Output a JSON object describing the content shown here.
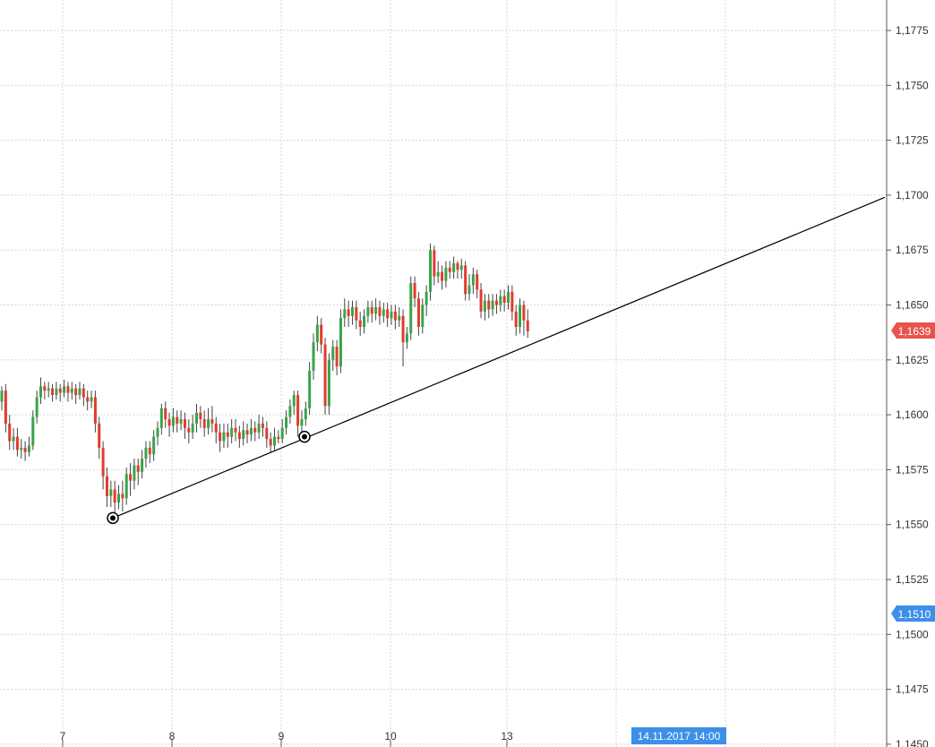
{
  "chart_data": {
    "type": "candlestick",
    "y_range": [
      1.145,
      1.179
    ],
    "y_ticks": [
      {
        "value": 1.1775,
        "label": "1,1775"
      },
      {
        "value": 1.175,
        "label": "1,1750"
      },
      {
        "value": 1.1725,
        "label": "1,1725"
      },
      {
        "value": 1.17,
        "label": "1,1700"
      },
      {
        "value": 1.1675,
        "label": "1,1675"
      },
      {
        "value": 1.165,
        "label": "1,1650"
      },
      {
        "value": 1.1625,
        "label": "1,1625"
      },
      {
        "value": 1.16,
        "label": "1,1600"
      },
      {
        "value": 1.1575,
        "label": "1,1575"
      },
      {
        "value": 1.155,
        "label": "1,1550"
      },
      {
        "value": 1.1525,
        "label": "1,1525"
      },
      {
        "value": 1.15,
        "label": "1,1500"
      },
      {
        "value": 1.1475,
        "label": "1,1475"
      },
      {
        "value": 1.145,
        "label": "1,1450"
      }
    ],
    "x_ticks": [
      "7",
      "8",
      "9",
      "10",
      "13"
    ],
    "current_price_label": "1,1639",
    "current_price_color": "#e8534f",
    "marker_price_label": "1,1510",
    "marker_price_color": "#3d8fe8",
    "cursor_time_label": "14.11.2017 14:00",
    "cursor_time_color": "#3d8fe8",
    "up_color": "#3aa34a",
    "down_color": "#e23b2e",
    "trendline": {
      "start_price": 1.1553,
      "anchor_price": 1.159,
      "end_price": 1.1699
    },
    "candles": [
      [
        1.1606,
        1.1611,
        1.1602,
        1.1613
      ],
      [
        1.1611,
        1.1596,
        1.1592,
        1.1614
      ],
      [
        1.1596,
        1.1588,
        1.1584,
        1.16
      ],
      [
        1.1588,
        1.159,
        1.1584,
        1.1594
      ],
      [
        1.159,
        1.1584,
        1.1581,
        1.1594
      ],
      [
        1.1584,
        1.1585,
        1.158,
        1.1589
      ],
      [
        1.1585,
        1.1583,
        1.1579,
        1.1588
      ],
      [
        1.1583,
        1.1586,
        1.1581,
        1.159
      ],
      [
        1.1586,
        1.1599,
        1.1584,
        1.1602
      ],
      [
        1.1599,
        1.1608,
        1.1596,
        1.1611
      ],
      [
        1.1608,
        1.1613,
        1.1605,
        1.1617
      ],
      [
        1.1613,
        1.1611,
        1.1607,
        1.1615
      ],
      [
        1.1611,
        1.1612,
        1.1608,
        1.1615
      ],
      [
        1.1612,
        1.1609,
        1.1606,
        1.1614
      ],
      [
        1.1609,
        1.1612,
        1.1607,
        1.1615
      ],
      [
        1.1612,
        1.161,
        1.1606,
        1.1614
      ],
      [
        1.161,
        1.1613,
        1.1608,
        1.1616
      ],
      [
        1.1613,
        1.161,
        1.1606,
        1.1615
      ],
      [
        1.161,
        1.1612,
        1.1607,
        1.1615
      ],
      [
        1.1612,
        1.1609,
        1.1605,
        1.1614
      ],
      [
        1.1609,
        1.1612,
        1.1607,
        1.1615
      ],
      [
        1.1612,
        1.1608,
        1.1604,
        1.1614
      ],
      [
        1.1608,
        1.1606,
        1.1602,
        1.1611
      ],
      [
        1.1606,
        1.1608,
        1.1603,
        1.1611
      ],
      [
        1.1608,
        1.1596,
        1.1592,
        1.1611
      ],
      [
        1.1596,
        1.1585,
        1.158,
        1.1599
      ],
      [
        1.1585,
        1.1572,
        1.1566,
        1.1588
      ],
      [
        1.1572,
        1.1563,
        1.1558,
        1.1576
      ],
      [
        1.1563,
        1.1566,
        1.1558,
        1.157
      ],
      [
        1.1566,
        1.156,
        1.1555,
        1.157
      ],
      [
        1.156,
        1.1564,
        1.1557,
        1.1568
      ],
      [
        1.1564,
        1.1562,
        1.1556,
        1.157
      ],
      [
        1.1562,
        1.1573,
        1.1559,
        1.1576
      ],
      [
        1.1573,
        1.157,
        1.1563,
        1.1578
      ],
      [
        1.157,
        1.1577,
        1.1566,
        1.158
      ],
      [
        1.1577,
        1.1574,
        1.1568,
        1.158
      ],
      [
        1.1574,
        1.158,
        1.1571,
        1.1584
      ],
      [
        1.158,
        1.1585,
        1.1576,
        1.1588
      ],
      [
        1.1585,
        1.1582,
        1.1578,
        1.1588
      ],
      [
        1.1582,
        1.159,
        1.1579,
        1.1593
      ],
      [
        1.159,
        1.1594,
        1.1586,
        1.1597
      ],
      [
        1.1594,
        1.1603,
        1.1591,
        1.1605
      ],
      [
        1.1603,
        1.1598,
        1.1594,
        1.1606
      ],
      [
        1.1598,
        1.1595,
        1.159,
        1.1601
      ],
      [
        1.1595,
        1.1599,
        1.1592,
        1.1603
      ],
      [
        1.1599,
        1.1596,
        1.1592,
        1.1602
      ],
      [
        1.1596,
        1.1598,
        1.1593,
        1.1602
      ],
      [
        1.1598,
        1.1594,
        1.1589,
        1.1601
      ],
      [
        1.1594,
        1.1592,
        1.1587,
        1.1598
      ],
      [
        1.1592,
        1.1596,
        1.1589,
        1.16
      ],
      [
        1.1596,
        1.1601,
        1.1592,
        1.1605
      ],
      [
        1.1601,
        1.1598,
        1.1594,
        1.1604
      ],
      [
        1.1598,
        1.1594,
        1.159,
        1.1602
      ],
      [
        1.1594,
        1.1598,
        1.1591,
        1.1603
      ],
      [
        1.1598,
        1.1596,
        1.1592,
        1.1604
      ],
      [
        1.1596,
        1.1592,
        1.1587,
        1.1599
      ],
      [
        1.1592,
        1.1588,
        1.1583,
        1.1596
      ],
      [
        1.1588,
        1.1592,
        1.1585,
        1.1596
      ],
      [
        1.1592,
        1.159,
        1.1585,
        1.1596
      ],
      [
        1.159,
        1.1594,
        1.1587,
        1.1598
      ],
      [
        1.1594,
        1.1592,
        1.1588,
        1.1598
      ],
      [
        1.1592,
        1.1589,
        1.1585,
        1.1595
      ],
      [
        1.1589,
        1.1593,
        1.1586,
        1.1597
      ],
      [
        1.1593,
        1.1591,
        1.1587,
        1.1596
      ],
      [
        1.1591,
        1.1594,
        1.1588,
        1.1598
      ],
      [
        1.1594,
        1.1592,
        1.1588,
        1.1597
      ],
      [
        1.1592,
        1.1596,
        1.1589,
        1.16
      ],
      [
        1.1596,
        1.1594,
        1.159,
        1.1599
      ],
      [
        1.1594,
        1.1589,
        1.1585,
        1.1597
      ],
      [
        1.1589,
        1.1586,
        1.1583,
        1.1592
      ],
      [
        1.1586,
        1.159,
        1.1584,
        1.1594
      ],
      [
        1.159,
        1.1589,
        1.1587,
        1.1593
      ],
      [
        1.1589,
        1.1594,
        1.1587,
        1.1598
      ],
      [
        1.1594,
        1.1599,
        1.1591,
        1.1602
      ],
      [
        1.1599,
        1.1604,
        1.1596,
        1.1607
      ],
      [
        1.1604,
        1.1609,
        1.16,
        1.1611
      ],
      [
        1.1609,
        1.1595,
        1.159,
        1.1611
      ],
      [
        1.1595,
        1.1598,
        1.1592,
        1.1602
      ],
      [
        1.1598,
        1.1603,
        1.1595,
        1.1606
      ],
      [
        1.1603,
        1.162,
        1.16,
        1.1624
      ],
      [
        1.162,
        1.1633,
        1.1616,
        1.1637
      ],
      [
        1.1633,
        1.1641,
        1.1629,
        1.1645
      ],
      [
        1.1641,
        1.1632,
        1.1628,
        1.1644
      ],
      [
        1.1632,
        1.1604,
        1.16,
        1.1635
      ],
      [
        1.1604,
        1.1625,
        1.16,
        1.1628
      ],
      [
        1.1625,
        1.1631,
        1.162,
        1.1634
      ],
      [
        1.1631,
        1.1622,
        1.1618,
        1.1634
      ],
      [
        1.1622,
        1.1644,
        1.1619,
        1.1648
      ],
      [
        1.1644,
        1.1648,
        1.164,
        1.1653
      ],
      [
        1.1648,
        1.1645,
        1.164,
        1.1652
      ],
      [
        1.1645,
        1.1649,
        1.1641,
        1.1652
      ],
      [
        1.1649,
        1.1643,
        1.1639,
        1.1652
      ],
      [
        1.1643,
        1.164,
        1.1636,
        1.1647
      ],
      [
        1.164,
        1.1645,
        1.1637,
        1.1648
      ],
      [
        1.1645,
        1.1649,
        1.1642,
        1.1652
      ],
      [
        1.1649,
        1.1646,
        1.1642,
        1.1652
      ],
      [
        1.1646,
        1.1649,
        1.1643,
        1.1653
      ],
      [
        1.1649,
        1.1645,
        1.1641,
        1.1652
      ],
      [
        1.1645,
        1.1648,
        1.1642,
        1.1651
      ],
      [
        1.1648,
        1.1644,
        1.164,
        1.1651
      ],
      [
        1.1644,
        1.1647,
        1.1641,
        1.165
      ],
      [
        1.1647,
        1.1643,
        1.1639,
        1.165
      ],
      [
        1.1643,
        1.1645,
        1.164,
        1.1649
      ],
      [
        1.1645,
        1.1633,
        1.1622,
        1.1648
      ],
      [
        1.1633,
        1.1637,
        1.163,
        1.164
      ],
      [
        1.1637,
        1.166,
        1.1634,
        1.1663
      ],
      [
        1.166,
        1.1653,
        1.1649,
        1.1663
      ],
      [
        1.1653,
        1.164,
        1.1636,
        1.1656
      ],
      [
        1.164,
        1.165,
        1.1637,
        1.1653
      ],
      [
        1.165,
        1.1656,
        1.1645,
        1.1659
      ],
      [
        1.1656,
        1.1675,
        1.1652,
        1.1678
      ],
      [
        1.1675,
        1.1663,
        1.1659,
        1.1677
      ],
      [
        1.1663,
        1.1665,
        1.166,
        1.167
      ],
      [
        1.1665,
        1.1661,
        1.1657,
        1.1668
      ],
      [
        1.1661,
        1.1667,
        1.1658,
        1.167
      ],
      [
        1.1667,
        1.1665,
        1.1662,
        1.167
      ],
      [
        1.1665,
        1.1669,
        1.1662,
        1.1672
      ],
      [
        1.1669,
        1.1666,
        1.1662,
        1.167
      ],
      [
        1.1666,
        1.1668,
        1.1662,
        1.1671
      ],
      [
        1.1668,
        1.1655,
        1.1652,
        1.167
      ],
      [
        1.1655,
        1.1659,
        1.1652,
        1.1664
      ],
      [
        1.1659,
        1.1664,
        1.1655,
        1.1667
      ],
      [
        1.1664,
        1.1657,
        1.1653,
        1.1666
      ],
      [
        1.1657,
        1.1647,
        1.1644,
        1.166
      ],
      [
        1.1647,
        1.1652,
        1.1643,
        1.1655
      ],
      [
        1.1652,
        1.1648,
        1.1644,
        1.1655
      ],
      [
        1.1648,
        1.1652,
        1.1645,
        1.1655
      ],
      [
        1.1652,
        1.165,
        1.1646,
        1.1655
      ],
      [
        1.165,
        1.1654,
        1.1647,
        1.1657
      ],
      [
        1.1654,
        1.1651,
        1.1647,
        1.1657
      ],
      [
        1.1651,
        1.1656,
        1.1648,
        1.1659
      ],
      [
        1.1656,
        1.1647,
        1.1643,
        1.1659
      ],
      [
        1.1647,
        1.164,
        1.1636,
        1.165
      ],
      [
        1.164,
        1.165,
        1.1637,
        1.1653
      ],
      [
        1.165,
        1.1643,
        1.1636,
        1.1652
      ],
      [
        1.1643,
        1.1638,
        1.1635,
        1.1648
      ]
    ]
  }
}
